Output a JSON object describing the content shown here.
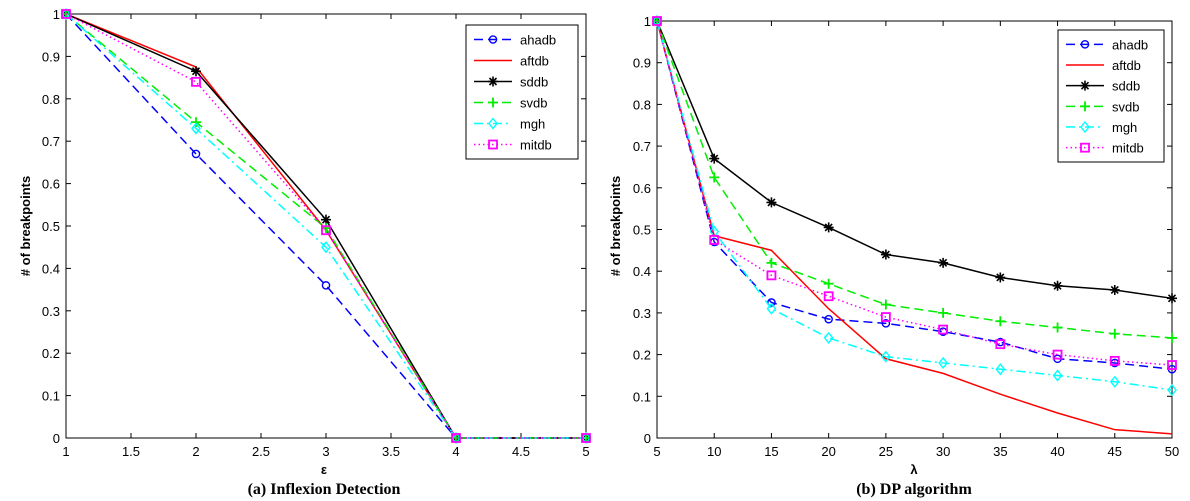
{
  "chart_data": [
    {
      "type": "line",
      "caption": "(a) Inflexion Detection",
      "xlabel": "ε",
      "ylabel": "# of breakpoints",
      "xlim": [
        1,
        5
      ],
      "ylim": [
        0,
        1
      ],
      "xticks": [
        1,
        1.5,
        2,
        2.5,
        3,
        3.5,
        4,
        4.5,
        5
      ],
      "yticks": [
        0,
        0.1,
        0.2,
        0.3,
        0.4,
        0.5,
        0.6,
        0.7,
        0.8,
        0.9,
        1
      ],
      "legend": "top-right",
      "x": [
        1,
        2,
        3,
        4,
        5
      ],
      "series": [
        {
          "name": "ahadb",
          "values": [
            1.0,
            0.67,
            0.36,
            0.0,
            0.0
          ]
        },
        {
          "name": "aftdb",
          "values": [
            1.0,
            0.875,
            0.49,
            0.0,
            0.0
          ]
        },
        {
          "name": "sddb",
          "values": [
            1.0,
            0.865,
            0.515,
            0.0,
            0.0
          ]
        },
        {
          "name": "svdb",
          "values": [
            1.0,
            0.745,
            0.495,
            0.0,
            0.0
          ]
        },
        {
          "name": "mgh",
          "values": [
            1.0,
            0.73,
            0.45,
            0.0,
            0.0
          ]
        },
        {
          "name": "mitdb",
          "values": [
            1.0,
            0.84,
            0.49,
            0.0,
            0.0
          ]
        }
      ]
    },
    {
      "type": "line",
      "caption": "(b)  DP algorithm",
      "xlabel": "λ",
      "ylabel": "# of breakpoints",
      "xlim": [
        5,
        50
      ],
      "ylim": [
        0,
        1
      ],
      "xticks": [
        5,
        10,
        15,
        20,
        25,
        30,
        35,
        40,
        45,
        50
      ],
      "yticks": [
        0,
        0.1,
        0.2,
        0.3,
        0.4,
        0.5,
        0.6,
        0.7,
        0.8,
        0.9,
        1
      ],
      "legend": "top-right",
      "x": [
        5,
        10,
        15,
        20,
        25,
        30,
        35,
        40,
        45,
        50
      ],
      "series": [
        {
          "name": "ahadb",
          "values": [
            1.0,
            0.47,
            0.325,
            0.285,
            0.275,
            0.255,
            0.23,
            0.19,
            0.18,
            0.165
          ]
        },
        {
          "name": "aftdb",
          "values": [
            1.0,
            0.485,
            0.45,
            0.31,
            0.19,
            0.155,
            0.105,
            0.06,
            0.02,
            0.01
          ]
        },
        {
          "name": "sddb",
          "values": [
            1.0,
            0.67,
            0.565,
            0.505,
            0.44,
            0.42,
            0.385,
            0.365,
            0.355,
            0.335
          ]
        },
        {
          "name": "svdb",
          "values": [
            1.0,
            0.625,
            0.42,
            0.37,
            0.32,
            0.3,
            0.28,
            0.265,
            0.25,
            0.24
          ]
        },
        {
          "name": "mgh",
          "values": [
            1.0,
            0.495,
            0.31,
            0.24,
            0.195,
            0.18,
            0.165,
            0.15,
            0.135,
            0.115
          ]
        },
        {
          "name": "mitdb",
          "values": [
            1.0,
            0.475,
            0.39,
            0.34,
            0.29,
            0.26,
            0.225,
            0.2,
            0.185,
            0.175
          ]
        }
      ]
    }
  ],
  "colors": {
    "ahadb": "#0000ff",
    "aftdb": "#ff0000",
    "sddb": "#000000",
    "svdb": "#00ee00",
    "mgh": "#00ffff",
    "mitdb": "#ff00ff"
  }
}
